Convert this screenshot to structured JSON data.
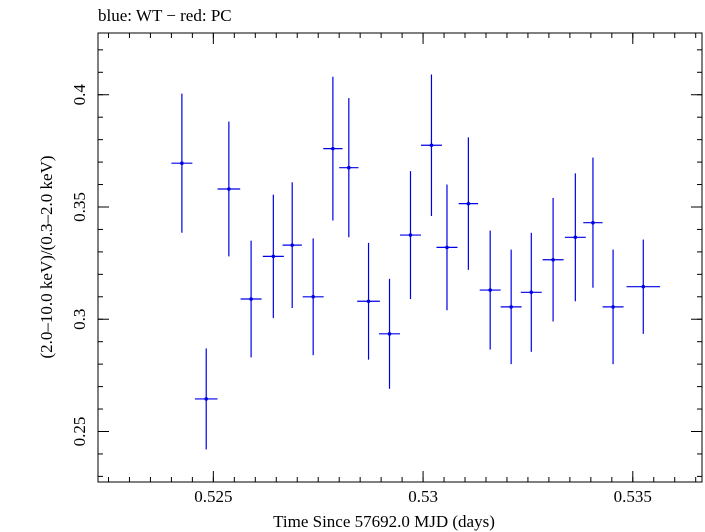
{
  "chart_data": {
    "type": "scatter",
    "title": "blue: WT − red: PC",
    "xlabel": "Time Since 57692.0 MJD (days)",
    "ylabel": "(2.0–10.0 keV)/(0.3–2.0 keV)",
    "xlim": [
      0.52225,
      0.53665
    ],
    "ylim": [
      0.2275,
      0.4275
    ],
    "x_ticks": [
      {
        "value": 0.525,
        "label": "0.525"
      },
      {
        "value": 0.53,
        "label": "0.53"
      },
      {
        "value": 0.535,
        "label": "0.535"
      }
    ],
    "x_minor_step": 0.0005,
    "y_ticks": [
      {
        "value": 0.25,
        "label": "0.25"
      },
      {
        "value": 0.3,
        "label": "0.3"
      },
      {
        "value": 0.35,
        "label": "0.35"
      },
      {
        "value": 0.4,
        "label": "0.4"
      }
    ],
    "y_minor_step": 0.01,
    "series": [
      {
        "name": "WT",
        "color": "#0000e6",
        "points": [
          {
            "x": 0.52425,
            "xerr": 0.00025,
            "y": 0.3695,
            "yerr": 0.031
          },
          {
            "x": 0.52483,
            "xerr": 0.00027,
            "y": 0.2645,
            "yerr": 0.0225
          },
          {
            "x": 0.52537,
            "xerr": 0.00027,
            "y": 0.358,
            "yerr": 0.03
          },
          {
            "x": 0.5259,
            "xerr": 0.00025,
            "y": 0.309,
            "yerr": 0.026
          },
          {
            "x": 0.52643,
            "xerr": 0.00025,
            "y": 0.328,
            "yerr": 0.0275
          },
          {
            "x": 0.52688,
            "xerr": 0.00023,
            "y": 0.333,
            "yerr": 0.028
          },
          {
            "x": 0.52738,
            "xerr": 0.00025,
            "y": 0.31,
            "yerr": 0.026
          },
          {
            "x": 0.52785,
            "xerr": 0.00023,
            "y": 0.376,
            "yerr": 0.032
          },
          {
            "x": 0.52823,
            "xerr": 0.00023,
            "y": 0.3675,
            "yerr": 0.031
          },
          {
            "x": 0.5287,
            "xerr": 0.00027,
            "y": 0.308,
            "yerr": 0.026
          },
          {
            "x": 0.5292,
            "xerr": 0.00025,
            "y": 0.2935,
            "yerr": 0.0245
          },
          {
            "x": 0.5297,
            "xerr": 0.00025,
            "y": 0.3375,
            "yerr": 0.0285
          },
          {
            "x": 0.5302,
            "xerr": 0.00025,
            "y": 0.3775,
            "yerr": 0.0315
          },
          {
            "x": 0.53057,
            "xerr": 0.00025,
            "y": 0.332,
            "yerr": 0.028
          },
          {
            "x": 0.53108,
            "xerr": 0.00023,
            "y": 0.3515,
            "yerr": 0.0295
          },
          {
            "x": 0.5316,
            "xerr": 0.00025,
            "y": 0.313,
            "yerr": 0.0265
          },
          {
            "x": 0.5321,
            "xerr": 0.00025,
            "y": 0.3055,
            "yerr": 0.0255
          },
          {
            "x": 0.53258,
            "xerr": 0.00025,
            "y": 0.312,
            "yerr": 0.0265
          },
          {
            "x": 0.5331,
            "xerr": 0.00025,
            "y": 0.3265,
            "yerr": 0.0275
          },
          {
            "x": 0.53363,
            "xerr": 0.00025,
            "y": 0.3365,
            "yerr": 0.0285
          },
          {
            "x": 0.53405,
            "xerr": 0.00023,
            "y": 0.343,
            "yerr": 0.029
          },
          {
            "x": 0.53453,
            "xerr": 0.00025,
            "y": 0.3055,
            "yerr": 0.0255
          },
          {
            "x": 0.53525,
            "xerr": 0.0004,
            "y": 0.3145,
            "yerr": 0.021
          }
        ]
      }
    ]
  }
}
